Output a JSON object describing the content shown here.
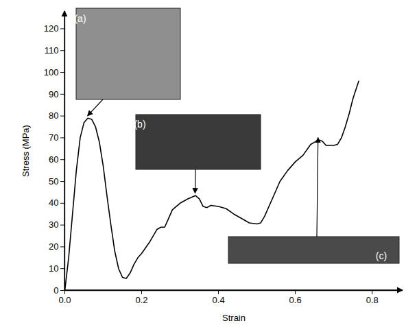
{
  "chart_data": {
    "type": "line",
    "x_label": "Strain",
    "y_label": "Stress (MPa)",
    "color": "#000000",
    "xlim": [
      0,
      0.88
    ],
    "ylim": [
      0,
      128
    ],
    "xticks": [
      {
        "value": 0,
        "label": "0.0"
      },
      {
        "value": 0.2,
        "label": "0.2"
      },
      {
        "value": 0.4,
        "label": "0.4"
      },
      {
        "value": 0.6,
        "label": "0.6"
      },
      {
        "value": 0.8,
        "label": "0.8"
      }
    ],
    "yticks": [
      0,
      10,
      20,
      30,
      40,
      50,
      60,
      70,
      80,
      90,
      100,
      110,
      120
    ],
    "x": [
      0,
      0.01,
      0.02,
      0.03,
      0.04,
      0.05,
      0.06,
      0.07,
      0.08,
      0.09,
      0.1,
      0.11,
      0.12,
      0.13,
      0.14,
      0.15,
      0.16,
      0.17,
      0.18,
      0.19,
      0.2,
      0.22,
      0.24,
      0.25,
      0.26,
      0.27,
      0.28,
      0.3,
      0.32,
      0.34,
      0.35,
      0.36,
      0.37,
      0.38,
      0.4,
      0.42,
      0.44,
      0.46,
      0.48,
      0.5,
      0.51,
      0.52,
      0.54,
      0.56,
      0.58,
      0.6,
      0.62,
      0.64,
      0.66,
      0.67,
      0.68,
      0.7,
      0.71,
      0.72,
      0.73,
      0.74,
      0.75,
      0.765
    ],
    "values": [
      0,
      15,
      35,
      55,
      70,
      77,
      79,
      78.5,
      75,
      68,
      57,
      43,
      30,
      18,
      10,
      6,
      5.5,
      8,
      12,
      15,
      17,
      22,
      28,
      29,
      29,
      33,
      37,
      40,
      42,
      43.5,
      42,
      38.5,
      38,
      39,
      38.5,
      37.5,
      35,
      33,
      31,
      30.5,
      31,
      34,
      42,
      50,
      55,
      59,
      62,
      67,
      69,
      68.5,
      66.5,
      66.5,
      67,
      70,
      75,
      81,
      88,
      96
    ],
    "annotations": [
      {
        "text": "(a)",
        "x": 0.06,
        "y": 79
      },
      {
        "text": "(b)",
        "x": 0.34,
        "y": 43.5
      },
      {
        "text": "(c)",
        "x": 0.66,
        "y": 69
      }
    ]
  }
}
